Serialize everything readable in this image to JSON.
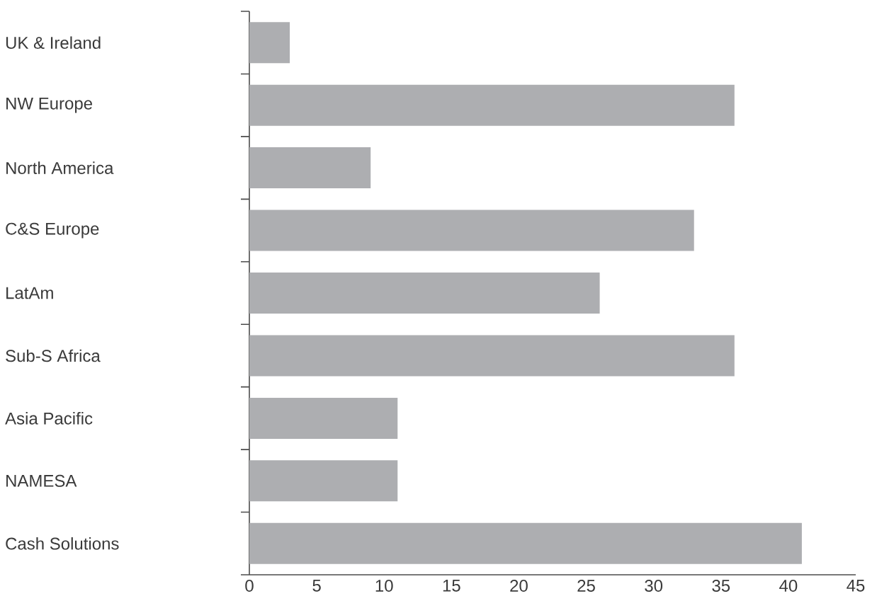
{
  "chart_data": {
    "type": "bar",
    "orientation": "horizontal",
    "categories": [
      "UK & Ireland",
      "NW Europe",
      "North America",
      "C&S Europe",
      "LatAm",
      "Sub-S Africa",
      "Asia Pacific",
      "NAMESA",
      "Cash Solutions"
    ],
    "values": [
      3,
      36,
      9,
      33,
      26,
      36,
      11,
      11,
      41
    ],
    "color": "#adaeb1",
    "xlim": [
      0,
      45
    ],
    "xticks": [
      0,
      5,
      10,
      15,
      20,
      25,
      30,
      35,
      40,
      45
    ]
  }
}
